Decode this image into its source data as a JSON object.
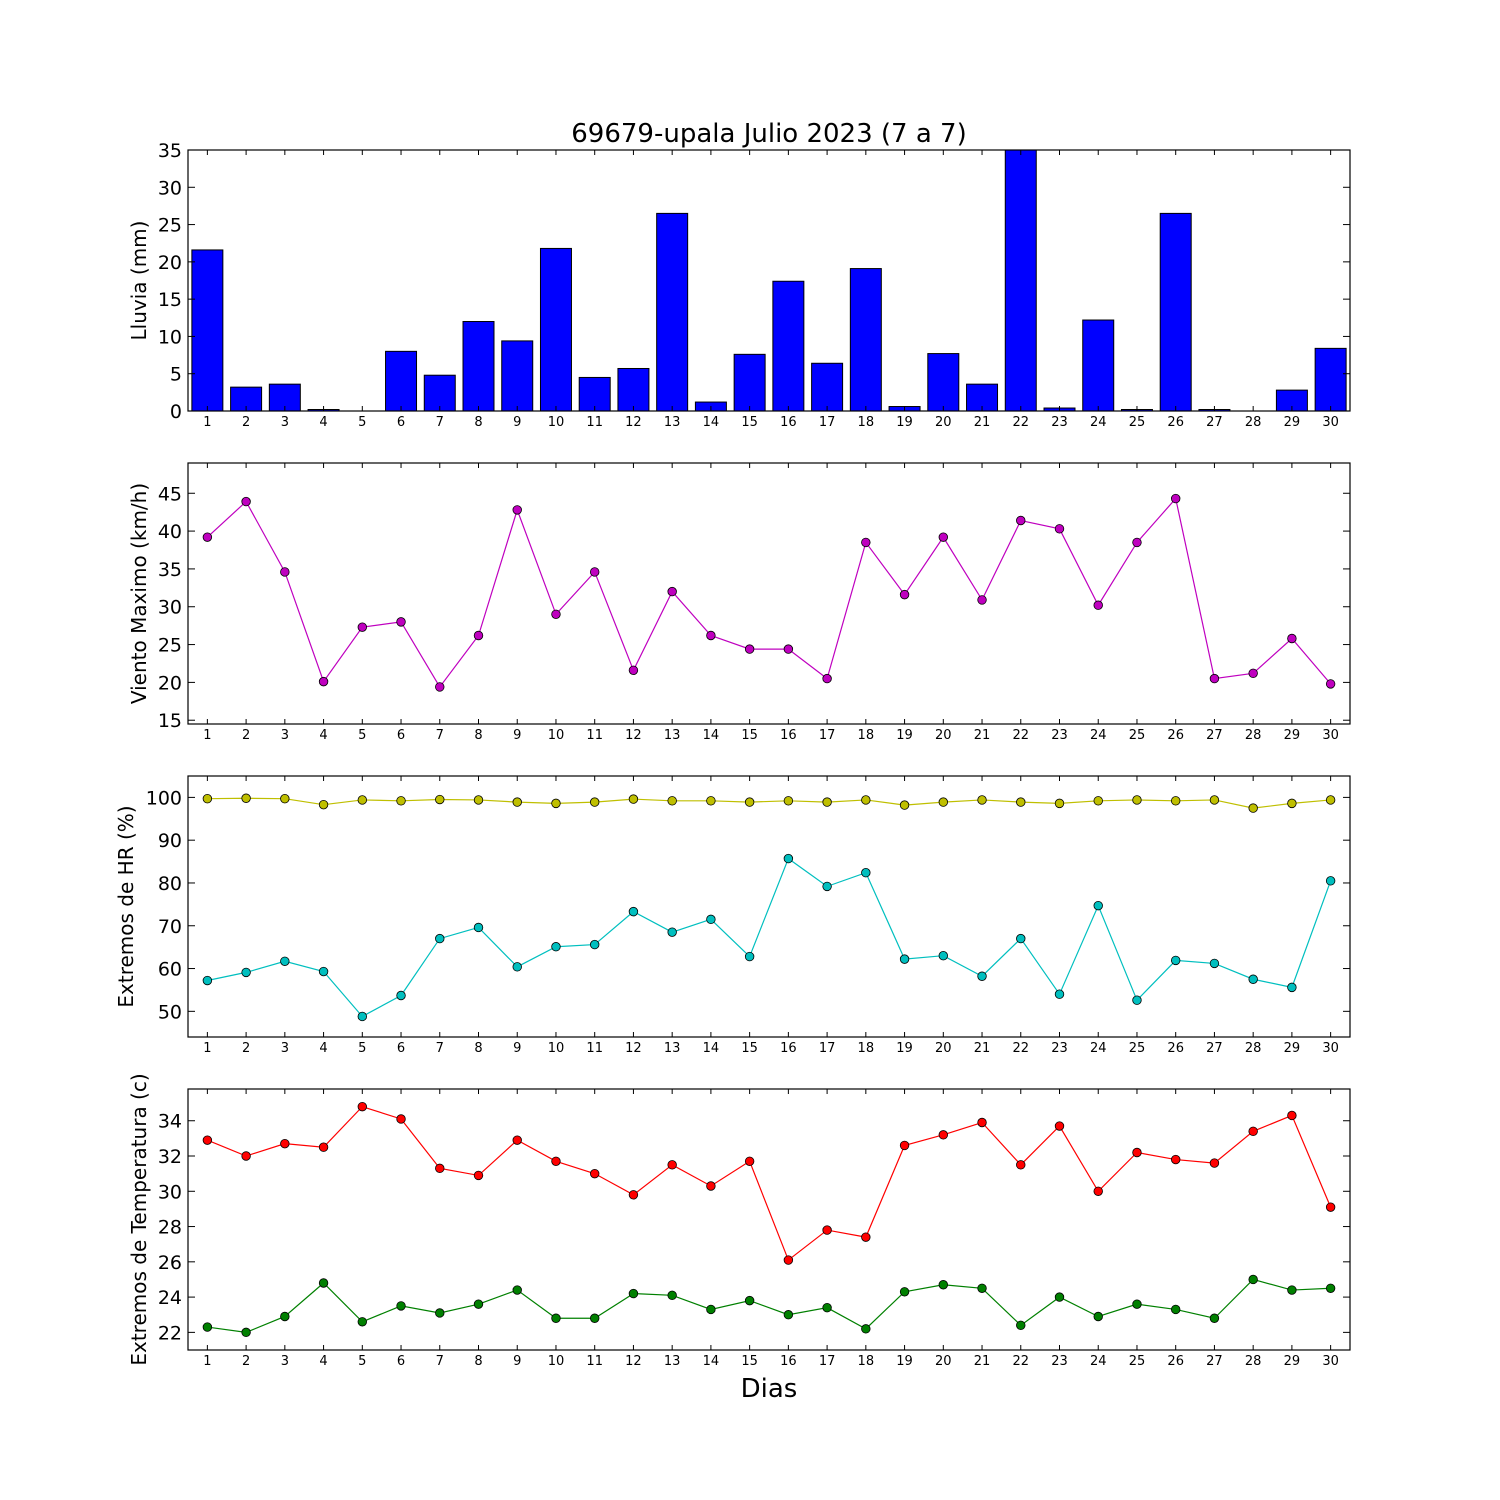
{
  "chart_data": [
    {
      "type": "bar",
      "title": "69679-upala Julio 2023  (7 a 7)",
      "ylabel": "Lluvia (mm)",
      "ylim": [
        0,
        35
      ],
      "yticks": [
        0,
        5,
        10,
        15,
        20,
        25,
        30,
        35
      ],
      "categories": [
        1,
        2,
        3,
        4,
        5,
        6,
        7,
        8,
        9,
        10,
        11,
        12,
        13,
        14,
        15,
        16,
        17,
        18,
        19,
        20,
        21,
        22,
        23,
        24,
        25,
        26,
        27,
        28,
        29,
        30
      ],
      "series": [
        {
          "color": "#0000ff",
          "values": [
            21.6,
            3.2,
            3.6,
            0.2,
            0.0,
            8.0,
            4.8,
            12.0,
            9.4,
            21.8,
            4.5,
            5.7,
            26.5,
            1.2,
            7.6,
            17.4,
            6.4,
            19.1,
            0.6,
            7.7,
            3.6,
            35.0,
            0.4,
            12.2,
            0.2,
            26.5,
            0.2,
            0.0,
            2.8,
            8.4
          ]
        }
      ]
    },
    {
      "type": "line",
      "ylabel": "Viento Maximo (km/h)",
      "ylim": [
        14.5,
        49
      ],
      "yticks": [
        15,
        20,
        25,
        30,
        35,
        40,
        45
      ],
      "x": [
        1,
        2,
        3,
        4,
        5,
        6,
        7,
        8,
        9,
        10,
        11,
        12,
        13,
        14,
        15,
        16,
        17,
        18,
        19,
        20,
        21,
        22,
        23,
        24,
        25,
        26,
        27,
        28,
        29,
        30
      ],
      "series": [
        {
          "color": "#bf00bf",
          "values": [
            39.2,
            43.9,
            34.6,
            20.1,
            27.3,
            28.0,
            19.4,
            26.2,
            42.8,
            29.0,
            34.6,
            21.6,
            32.0,
            26.2,
            24.4,
            24.4,
            20.5,
            38.5,
            31.6,
            39.2,
            30.9,
            41.4,
            40.3,
            30.2,
            38.5,
            44.3,
            20.5,
            21.2,
            25.8,
            19.8
          ]
        }
      ]
    },
    {
      "type": "line",
      "ylabel": "Extremos de HR (%)",
      "ylim": [
        44,
        105
      ],
      "yticks": [
        50,
        60,
        70,
        80,
        90,
        100
      ],
      "x": [
        1,
        2,
        3,
        4,
        5,
        6,
        7,
        8,
        9,
        10,
        11,
        12,
        13,
        14,
        15,
        16,
        17,
        18,
        19,
        20,
        21,
        22,
        23,
        24,
        25,
        26,
        27,
        28,
        29,
        30
      ],
      "series": [
        {
          "color": "#bfbf00",
          "values": [
            99.7,
            99.8,
            99.7,
            98.3,
            99.4,
            99.2,
            99.5,
            99.4,
            98.9,
            98.6,
            98.9,
            99.6,
            99.2,
            99.2,
            98.9,
            99.2,
            98.9,
            99.4,
            98.2,
            98.9,
            99.4,
            98.9,
            98.6,
            99.2,
            99.4,
            99.2,
            99.4,
            97.5,
            98.6,
            99.4
          ]
        },
        {
          "color": "#00bfbf",
          "values": [
            57.2,
            59.1,
            61.7,
            59.3,
            48.8,
            53.7,
            67.0,
            69.6,
            60.4,
            65.1,
            65.6,
            73.3,
            68.5,
            71.5,
            62.8,
            85.7,
            79.2,
            82.4,
            62.2,
            63.0,
            58.2,
            67.0,
            54.0,
            74.7,
            52.6,
            61.9,
            61.2,
            57.5,
            55.6,
            80.5
          ]
        }
      ]
    },
    {
      "type": "line",
      "ylabel": "Extremos de Temperatura (c)",
      "xlabel": "Dias",
      "ylim": [
        21,
        35.8
      ],
      "yticks": [
        22,
        24,
        26,
        28,
        30,
        32,
        34
      ],
      "x": [
        1,
        2,
        3,
        4,
        5,
        6,
        7,
        8,
        9,
        10,
        11,
        12,
        13,
        14,
        15,
        16,
        17,
        18,
        19,
        20,
        21,
        22,
        23,
        24,
        25,
        26,
        27,
        28,
        29,
        30
      ],
      "series": [
        {
          "color": "#ff0000",
          "values": [
            32.9,
            32.0,
            32.7,
            32.5,
            34.8,
            34.1,
            31.3,
            30.9,
            32.9,
            31.7,
            31.0,
            29.8,
            31.5,
            30.3,
            31.7,
            26.1,
            27.8,
            27.4,
            32.6,
            33.2,
            33.9,
            31.5,
            33.7,
            30.0,
            32.2,
            31.8,
            31.6,
            33.4,
            34.3,
            29.1
          ]
        },
        {
          "color": "#008000",
          "values": [
            22.3,
            22.0,
            22.9,
            24.8,
            22.6,
            23.5,
            23.1,
            23.6,
            24.4,
            22.8,
            22.8,
            24.2,
            24.1,
            23.3,
            23.8,
            23.0,
            23.4,
            22.2,
            24.3,
            24.7,
            24.5,
            22.4,
            24.0,
            22.9,
            23.6,
            23.3,
            22.8,
            25.0,
            24.4,
            24.5
          ]
        }
      ]
    }
  ]
}
